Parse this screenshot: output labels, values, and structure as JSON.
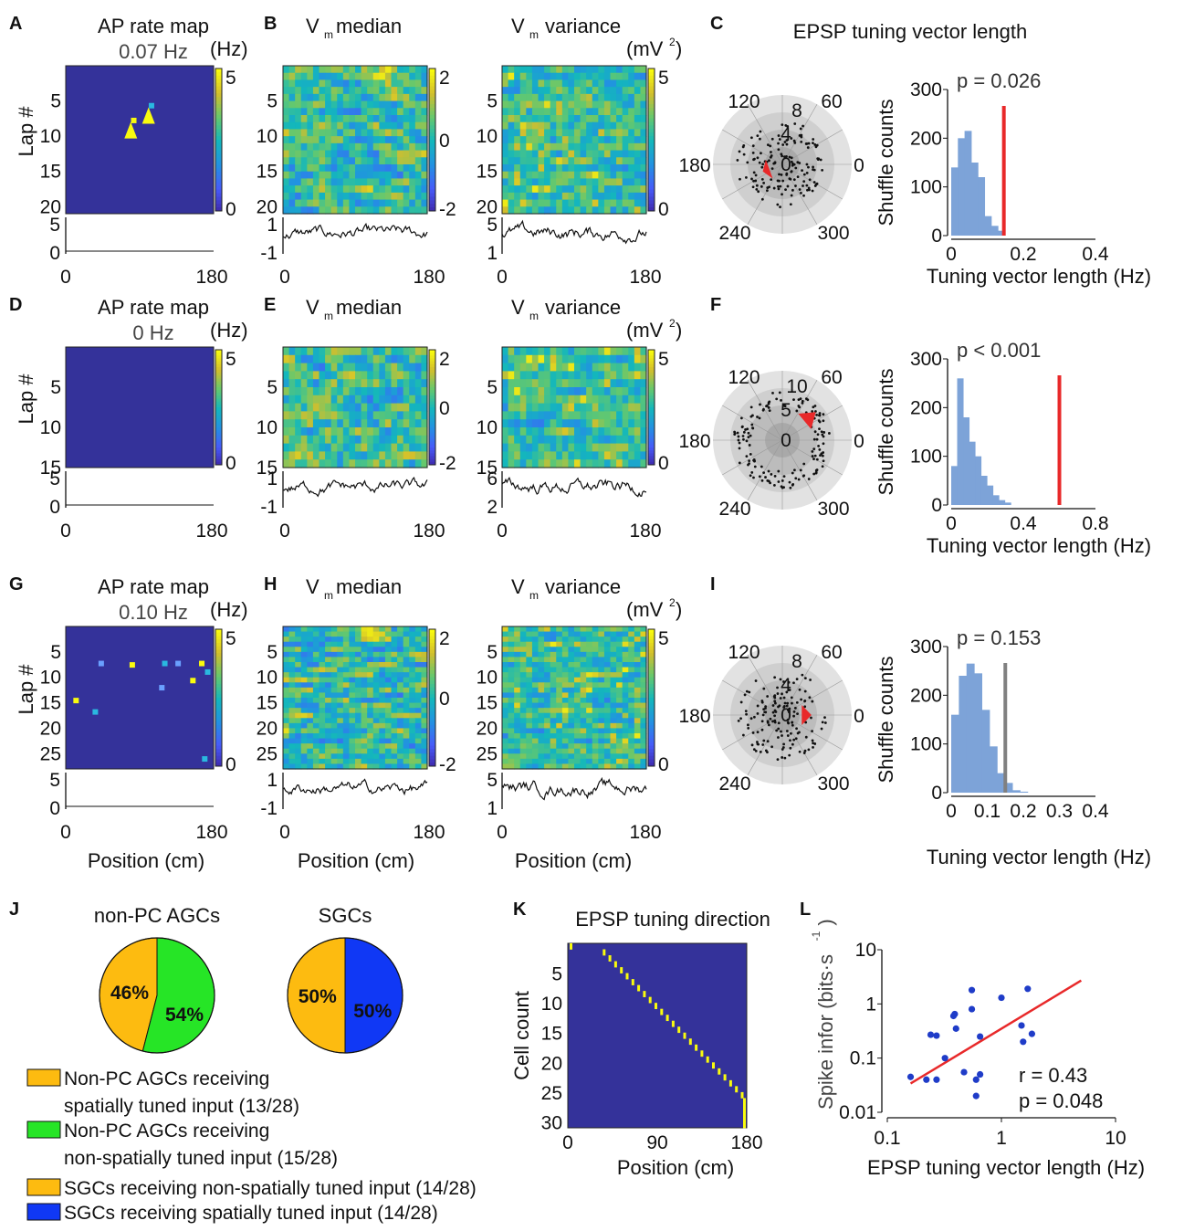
{
  "panel_letters": [
    "A",
    "B",
    "C",
    "D",
    "E",
    "F",
    "G",
    "H",
    "I",
    "J",
    "K",
    "L"
  ],
  "colors": {
    "map_bg": "#34329a",
    "parula_low": "#3e26a8",
    "parula_mid": "#2ab8a0",
    "parula_high": "#f9fb0e",
    "hist_fill": "#7da3d8",
    "red": "#e8292a",
    "gray_line": "#808080",
    "pie_yellow": "#fdbb10",
    "pie_green": "#26e526",
    "pie_blue": "#1038f5",
    "dot_blue": "#1f3cc8"
  },
  "rows": [
    {
      "ap_title": "AP rate map",
      "ap_rate": "0.07 Hz",
      "hz_unit": "(Hz)",
      "cb_ap": [
        "5",
        "0"
      ],
      "lap_ylabel": "Lap #",
      "lap_ticks": [
        "5",
        "10",
        "15",
        "20"
      ],
      "laps": 21,
      "ap_spots": [
        [
          0.46,
          0.37
        ],
        [
          0.58,
          0.27
        ]
      ],
      "arrowheads": [
        [
          0.44,
          0.43
        ],
        [
          0.56,
          0.33
        ]
      ],
      "trace_ticks": [
        "5",
        "0"
      ],
      "x_ticks": [
        "0",
        "180"
      ],
      "vm_med_title": "V",
      "vm_sub": "m",
      "median_word": "median",
      "vm_var_title": "V",
      "variance_word": "variance",
      "mv_unit": "(mV",
      "mv_exp": "2",
      "mv_close": ")",
      "cb_med": [
        "2",
        "0",
        "-2"
      ],
      "cb_var": [
        "5",
        "0"
      ],
      "med_trace_ticks": [
        "1",
        "-1"
      ],
      "var_trace_ticks": [
        "5",
        "1"
      ],
      "polar_rings": [
        "8",
        "4",
        "0"
      ],
      "polar_angles": [
        "120",
        "60",
        "180",
        "0",
        "240",
        "300"
      ],
      "vector_angle_deg": 200,
      "vector_len": 0.2,
      "hist_p": "p = 0.026",
      "hist_yticks": [
        "300",
        "200",
        "100",
        "0"
      ],
      "hist_xticks": [
        "0",
        "0.2",
        "0.4"
      ],
      "hist_xmax": 0.4,
      "hist_bins": [
        0,
        0.0167,
        0.1
      ],
      "hist_counts": [
        140,
        200,
        215,
        150,
        120,
        40,
        20,
        10
      ],
      "hist_marker": 0.146,
      "marker_color": "red",
      "hist_ylabel": "Shuffle counts",
      "hist_xlabel": "Tuning vector length (Hz)"
    },
    {
      "ap_title": "AP rate map",
      "ap_rate": "0 Hz",
      "hz_unit": "(Hz)",
      "cb_ap": [
        "5",
        "0"
      ],
      "lap_ylabel": "Lap #",
      "lap_ticks": [
        "5",
        "10",
        "15"
      ],
      "laps": 15,
      "ap_spots": [],
      "arrowheads": [],
      "trace_ticks": [
        "5",
        "0"
      ],
      "x_ticks": [
        "0",
        "180"
      ],
      "vm_med_title": "V",
      "vm_sub": "m",
      "median_word": "median",
      "vm_var_title": "V",
      "variance_word": "variance",
      "mv_unit": "(mV",
      "mv_exp": "2",
      "mv_close": ")",
      "cb_med": [
        "2",
        "0",
        "-2"
      ],
      "cb_var": [
        "5",
        "0"
      ],
      "med_trace_ticks": [
        "1",
        "-1"
      ],
      "var_trace_ticks": [
        "6",
        "2"
      ],
      "polar_rings": [
        "10",
        "5",
        "0"
      ],
      "polar_angles": [
        "120",
        "60",
        "180",
        "0",
        "240",
        "300"
      ],
      "vector_angle_deg": 40,
      "vector_len": 0.42,
      "hist_p": "p < 0.001",
      "hist_yticks": [
        "300",
        "200",
        "100",
        "0"
      ],
      "hist_xticks": [
        "0",
        "0.4",
        "0.8"
      ],
      "hist_xmax": 0.8,
      "hist_counts": [
        80,
        260,
        180,
        130,
        100,
        60,
        40,
        20,
        10,
        5
      ],
      "hist_bin_w": 0.033,
      "hist_marker": 0.6,
      "marker_color": "red",
      "hist_ylabel": "Shuffle counts",
      "hist_xlabel": "Tuning vector length (Hz)"
    },
    {
      "ap_title": "AP rate map",
      "ap_rate": "0.10 Hz",
      "hz_unit": "(Hz)",
      "cb_ap": [
        "5",
        "0"
      ],
      "lap_ylabel": "Lap #",
      "lap_ticks": [
        "5",
        "10",
        "15",
        "20",
        "25"
      ],
      "laps": 28,
      "ap_spots": [
        [
          0.07,
          0.52
        ],
        [
          0.2,
          0.6
        ],
        [
          0.24,
          0.26
        ],
        [
          0.45,
          0.27
        ],
        [
          0.67,
          0.26
        ],
        [
          0.76,
          0.26
        ],
        [
          0.92,
          0.26
        ],
        [
          0.96,
          0.32
        ],
        [
          0.65,
          0.43
        ],
        [
          0.86,
          0.38
        ],
        [
          0.94,
          0.93
        ]
      ],
      "arrowheads": [],
      "trace_ticks": [
        "5",
        "0"
      ],
      "x_ticks": [
        "0",
        "180"
      ],
      "vm_med_title": "V",
      "vm_sub": "m",
      "median_word": "median",
      "vm_var_title": "V",
      "variance_word": "variance",
      "mv_unit": "(mV",
      "mv_exp": "2",
      "mv_close": ")",
      "cb_med": [
        "2",
        "0",
        "-2"
      ],
      "cb_var": [
        "5",
        "0"
      ],
      "med_trace_ticks": [
        "1",
        "-1"
      ],
      "var_trace_ticks": [
        "5",
        "1"
      ],
      "polar_rings": [
        "8",
        "4",
        "0"
      ],
      "polar_angles": [
        "120",
        "60",
        "180",
        "0",
        "240",
        "300"
      ],
      "vector_angle_deg": 0,
      "vector_len": 0.28,
      "hist_p": "p = 0.153",
      "hist_yticks": [
        "300",
        "200",
        "100",
        "0"
      ],
      "hist_xticks": [
        "0",
        "0.1",
        "0.2",
        "0.3",
        "0.4"
      ],
      "hist_xmax": 0.4,
      "hist_counts": [
        160,
        240,
        265,
        245,
        170,
        95,
        40,
        20,
        5,
        2
      ],
      "hist_bin_w": 0.0212,
      "hist_marker": 0.15,
      "marker_color": "gray",
      "hist_ylabel": "Shuffle counts",
      "hist_xlabel": "Tuning vector length (Hz)",
      "position_xlabel": "Position (cm)"
    }
  ],
  "panel_c_title": "EPSP tuning vector length",
  "pies": {
    "left": {
      "title": "non-PC AGCs",
      "slices": [
        {
          "label": "46%",
          "value": 46,
          "color": "#fdbb10"
        },
        {
          "label": "54%",
          "value": 54,
          "color": "#26e526"
        }
      ]
    },
    "right": {
      "title": "SGCs",
      "slices": [
        {
          "label": "50%",
          "value": 50,
          "color": "#fdbb10"
        },
        {
          "label": "50%",
          "value": 50,
          "color": "#1038f5"
        }
      ]
    }
  },
  "legend": [
    {
      "color": "#fdbb10",
      "line1": "Non-PC AGCs receiving",
      "line2": "spatially tuned input (13/28)"
    },
    {
      "color": "#26e526",
      "line1": "Non-PC AGCs receiving",
      "line2": "non-spatially tuned input (15/28)"
    },
    {
      "color": "#fdbb10",
      "line1": "SGCs receiving non-spatially tuned input (14/28)",
      "line2": ""
    },
    {
      "color": "#1038f5",
      "line1": "SGCs receiving spatially tuned input (14/28)",
      "line2": ""
    }
  ],
  "panel_k": {
    "title": "EPSP tuning direction",
    "ylabel": "Cell count",
    "xlabel": "Position (cm)",
    "yticks": [
      "5",
      "10",
      "15",
      "20",
      "25",
      "30"
    ],
    "xticks": [
      "0",
      "90",
      "180"
    ],
    "cells": 31
  },
  "chart_data": {
    "type": "scatter",
    "title": "",
    "xlabel": "EPSP tuning vector length (Hz)",
    "ylabel": "Spike infor (bits·s",
    "ylabel_exp": "-1",
    "ylabel_close": ")",
    "x_scale": "log",
    "y_scale": "log",
    "xlim": [
      0.1,
      10
    ],
    "ylim": [
      0.01,
      10
    ],
    "xticks": [
      "0.1",
      "1",
      "10"
    ],
    "yticks": [
      "10",
      "1",
      "0.1",
      "0.01"
    ],
    "points": [
      [
        0.16,
        0.045
      ],
      [
        0.22,
        0.04
      ],
      [
        0.24,
        0.27
      ],
      [
        0.27,
        0.26
      ],
      [
        0.27,
        0.04
      ],
      [
        0.32,
        0.1
      ],
      [
        0.38,
        0.6
      ],
      [
        0.39,
        0.65
      ],
      [
        0.4,
        0.35
      ],
      [
        0.47,
        0.055
      ],
      [
        0.55,
        0.8
      ],
      [
        0.55,
        1.8
      ],
      [
        0.6,
        0.04
      ],
      [
        0.6,
        0.02
      ],
      [
        0.65,
        0.25
      ],
      [
        0.65,
        0.05
      ],
      [
        1.0,
        1.3
      ],
      [
        1.5,
        0.4
      ],
      [
        1.55,
        0.2
      ],
      [
        1.7,
        1.9
      ],
      [
        1.85,
        0.28
      ]
    ],
    "fit_line": [
      [
        0.16,
        0.034
      ],
      [
        5.0,
        2.7
      ]
    ],
    "annotations": [
      "r = 0.43",
      "p = 0.048"
    ]
  }
}
